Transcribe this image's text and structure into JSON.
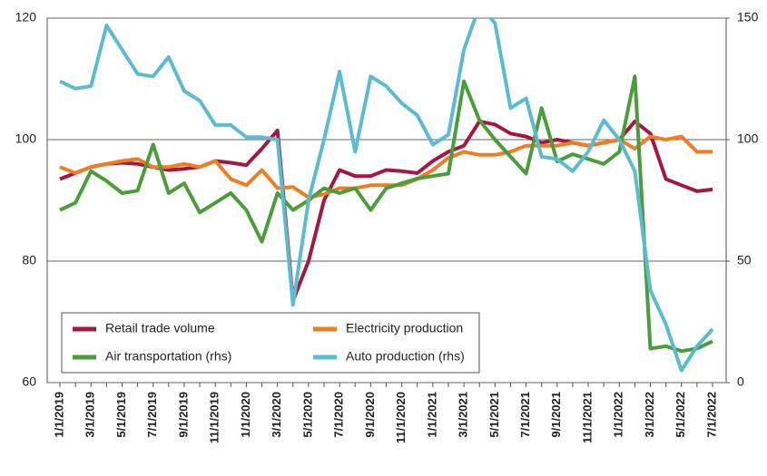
{
  "chart_data": {
    "type": "line",
    "categories": [
      "1/1/2019",
      null,
      "3/1/2019",
      null,
      "5/1/2019",
      null,
      "7/1/2019",
      null,
      "9/1/2019",
      null,
      "11/1/2019",
      null,
      "1/1/2020",
      null,
      "3/1/2020",
      null,
      "5/1/2020",
      null,
      "7/1/2020",
      null,
      "9/1/2020",
      null,
      "11/1/2020",
      null,
      "1/1/2021",
      null,
      "3/1/2021",
      null,
      "5/1/2021",
      null,
      "7/1/2021",
      null,
      "9/1/2021",
      null,
      "11/1/2021",
      null,
      "1/1/2022",
      null,
      "3/1/2022",
      null,
      "5/1/2022",
      null,
      "7/1/2022"
    ],
    "ylim": [
      60,
      120
    ],
    "yticks": [
      60,
      80,
      100,
      120
    ],
    "y2lim": [
      0,
      150
    ],
    "y2ticks": [
      0,
      50,
      100,
      150
    ],
    "grid": true,
    "legend": "lower left",
    "series": [
      {
        "name": "Retail trade volume",
        "color": "#a3183f",
        "values": [
          93.5,
          94.5,
          95.5,
          96,
          96.2,
          96,
          95.5,
          95,
          95.2,
          95.5,
          96.5,
          96.2,
          95.8,
          98.5,
          101.5,
          73.5,
          80,
          90,
          95,
          94,
          94,
          95,
          94.8,
          94.5,
          96.5,
          98,
          99,
          103,
          102.5,
          101,
          100.5,
          99.5,
          100,
          99.5,
          99,
          99.5,
          100,
          103,
          101,
          93.5,
          92.5,
          91.5,
          91.8
        ]
      },
      {
        "name": "Electricity production",
        "color": "#ef7d22",
        "values": [
          95.5,
          94.5,
          95.5,
          96,
          96.5,
          96.8,
          95.5,
          95.5,
          96,
          95.5,
          96.5,
          93.5,
          92.5,
          95,
          92,
          92.2,
          90.5,
          91,
          92,
          92,
          92.5,
          92.5,
          92.5,
          93.5,
          95,
          97,
          98,
          97.5,
          97.5,
          98,
          99,
          99,
          99,
          99.5,
          99,
          99.5,
          100,
          98.5,
          100.5,
          100,
          100.5,
          98,
          98
        ]
      },
      {
        "name": "Air transportation (rhs)",
        "color": "#4a9e3a",
        "axis": "y2",
        "values": [
          71,
          74,
          87,
          83,
          78,
          79,
          98,
          78,
          82,
          70,
          74,
          78,
          71,
          58,
          78,
          71,
          75,
          80,
          78,
          80,
          71,
          80,
          82,
          84,
          85,
          86,
          124,
          108,
          100,
          93,
          86,
          113,
          91,
          94,
          92,
          90,
          95,
          126,
          14,
          15,
          13,
          14,
          17
        ]
      },
      {
        "name": "Auto production (rhs)",
        "color": "#5bbcd1",
        "axis": "y2",
        "values": [
          124,
          121,
          122,
          147,
          137,
          127,
          126,
          134,
          120,
          116,
          106,
          106,
          101,
          101,
          100,
          32,
          75,
          100,
          128,
          95,
          126,
          122,
          115,
          110,
          98,
          102,
          137,
          155,
          148,
          113,
          117,
          93,
          92,
          87,
          95,
          108,
          100,
          87,
          38,
          24,
          5,
          15,
          22
        ]
      }
    ]
  }
}
